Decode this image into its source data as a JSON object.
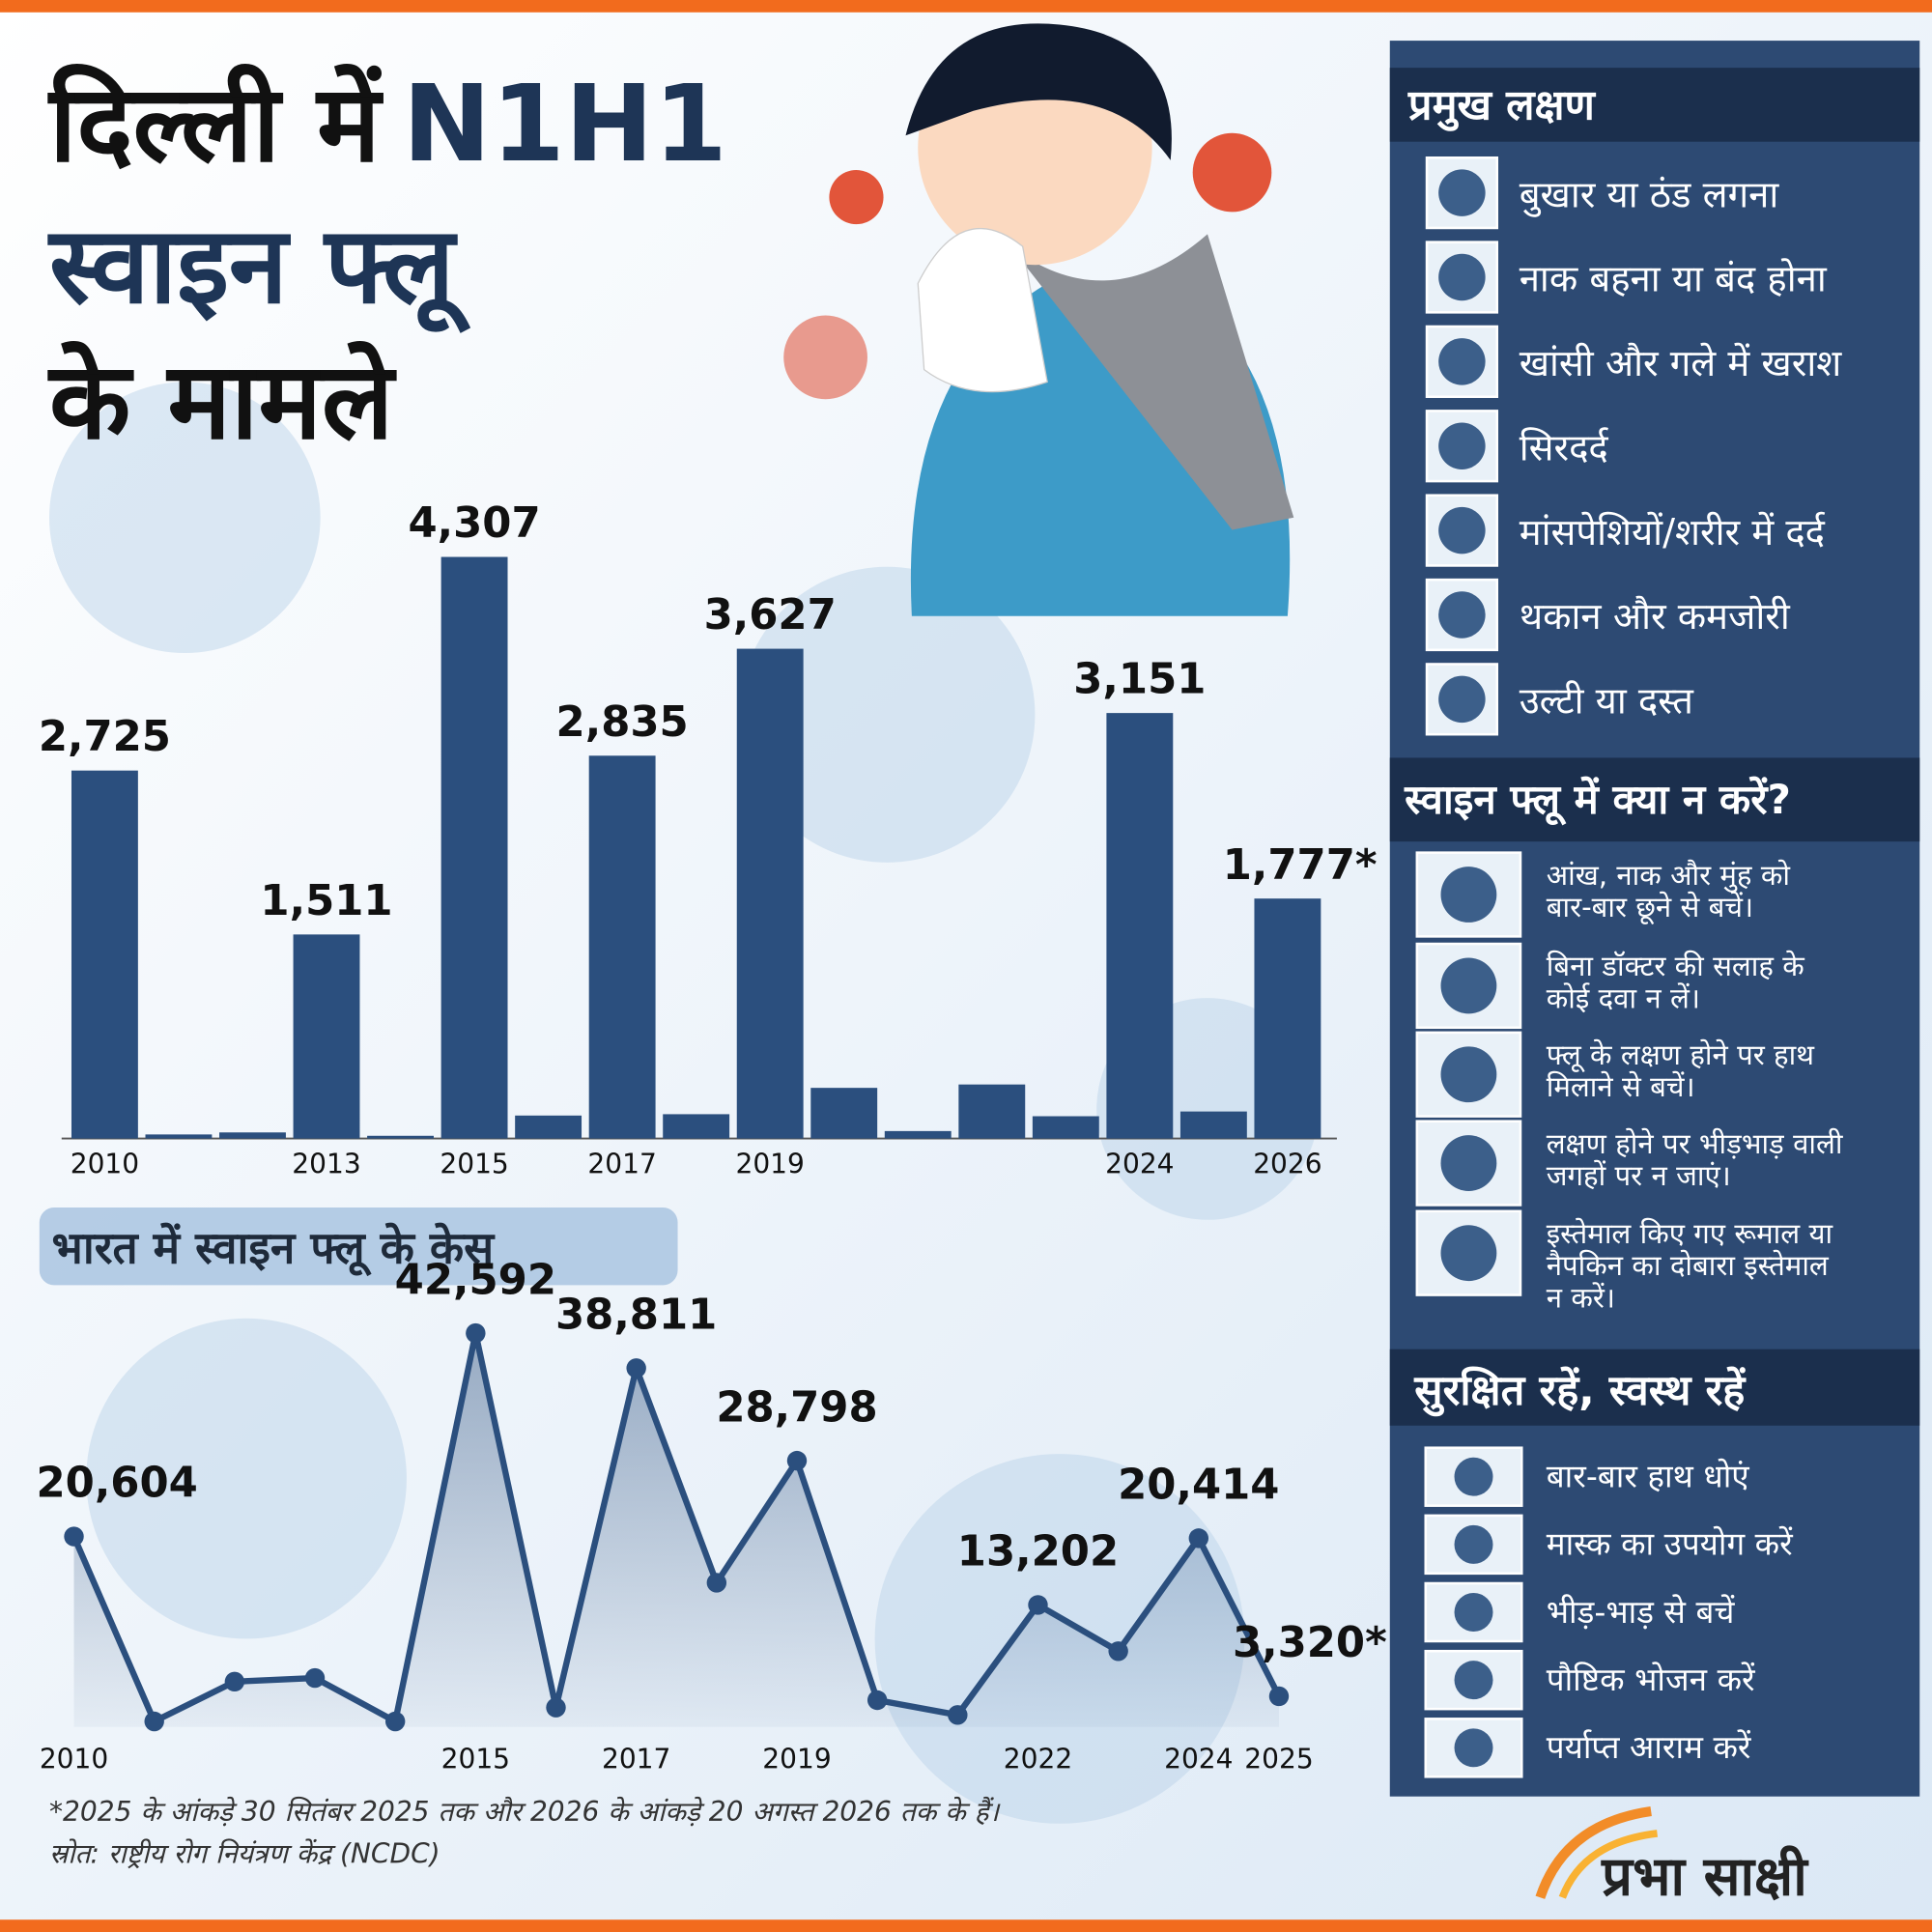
{
  "header": {
    "title_part1": "दिल्ली में",
    "title_part2": "N1H1",
    "title_line2": "स्वाइन फ्लू",
    "title_line3": "के मामले"
  },
  "chart_data": [
    {
      "type": "bar",
      "color": "#2b4f7e",
      "categories": [
        "2010",
        null,
        null,
        "2013",
        null,
        "2015",
        null,
        "2017",
        null,
        "2019",
        null,
        null,
        null,
        null,
        "2024",
        null,
        "2026"
      ],
      "values": [
        2725,
        30,
        45,
        1511,
        20,
        4307,
        170,
        2835,
        180,
        3627,
        375,
        55,
        400,
        165,
        3151,
        200,
        1777
      ],
      "value_labels": [
        "2,725",
        null,
        null,
        "1,511",
        null,
        "4,307",
        null,
        "2,835",
        null,
        "3,627",
        null,
        null,
        null,
        null,
        "3,151",
        null,
        "1,777*"
      ]
    },
    {
      "type": "line",
      "title": "भारत में स्वाइन फ्लू के केस",
      "color": "#2b4f7e",
      "categories": [
        "2010",
        null,
        null,
        null,
        null,
        "2015",
        null,
        "2017",
        null,
        "2019",
        null,
        null,
        "2022",
        null,
        "2024",
        "2025"
      ],
      "values": [
        20604,
        600,
        4900,
        5300,
        600,
        42592,
        2100,
        38811,
        15600,
        28798,
        2900,
        1300,
        13202,
        8200,
        20414,
        3320
      ],
      "value_labels": [
        "20,604",
        null,
        null,
        null,
        null,
        "42,592",
        null,
        "38,811",
        null,
        "28,798",
        null,
        null,
        "13,202",
        null,
        "20,414",
        "3,320*"
      ]
    }
  ],
  "symptoms": {
    "title": "प्रमुख लक्षण",
    "items": [
      "बुखार या ठंड लगना",
      "नाक बहना या बंद होना",
      "खांसी और गले में खराश",
      "सिरदर्द",
      "मांसपेशियों/शरीर में दर्द",
      "थकान और कमजोरी",
      "उल्टी या दस्त"
    ]
  },
  "donts": {
    "title": "स्वाइन फ्लू में क्या न करें?",
    "items": [
      [
        "आंख, नाक और मुंह को",
        "बार-बार छूने से बचें।"
      ],
      [
        "बिना डॉक्टर की सलाह के",
        "कोई दवा न लें।"
      ],
      [
        "फ्लू के लक्षण होने पर हाथ",
        "मिलाने से बचें।"
      ],
      [
        "लक्षण होने पर भीड़भाड़ वाली",
        "जगहों पर न जाएं।"
      ],
      [
        "इस्तेमाल किए गए रूमाल या",
        "नैपकिन का दोबारा इस्तेमाल",
        "न करें।"
      ]
    ]
  },
  "tips": {
    "title": "सुरक्षित रहें, स्वस्थ रहें",
    "items": [
      "बार-बार हाथ धोएं",
      "मास्क का उपयोग करें",
      "भीड़-भाड़ से बचें",
      "पौष्टिक भोजन करें",
      "पर्याप्त आराम करें"
    ]
  },
  "footnote": "*2025 के आंकड़े 30 सितंबर 2025 तक और 2026 के आंकड़े 20 अगस्त 2026 तक के हैं।",
  "source": "स्रोत: राष्ट्रीय रोग नियंत्रण केंद्र (NCDC)",
  "logo": "प्रभा साक्षी"
}
